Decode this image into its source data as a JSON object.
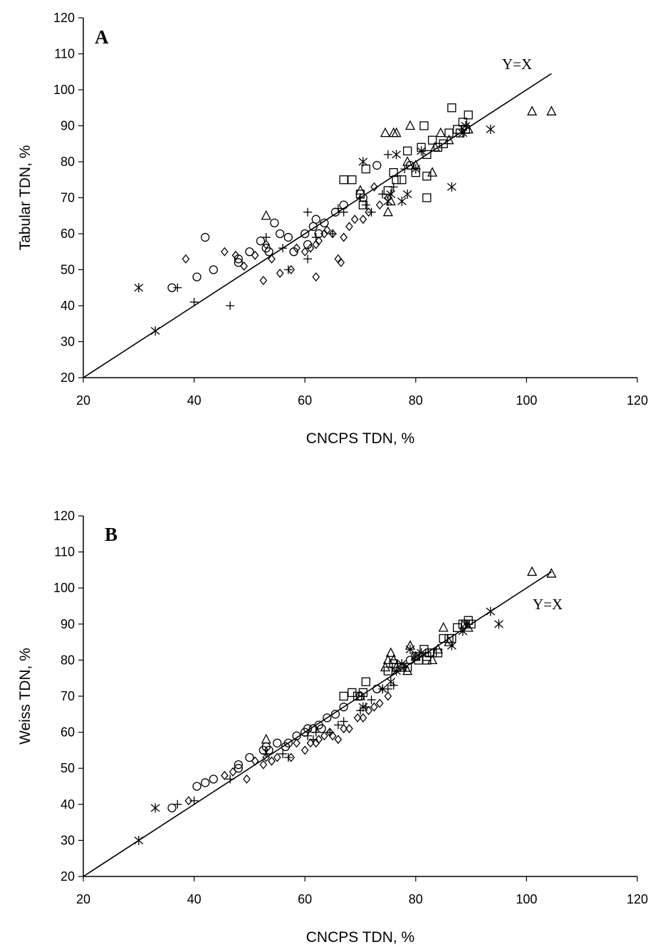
{
  "chart_data": [
    {
      "type": "scatter",
      "panel_label": "A",
      "xlabel": "CNCPS TDN, %",
      "ylabel": "Tabular TDN, %",
      "xlim": [
        20,
        120
      ],
      "ylim": [
        20,
        120
      ],
      "x_ticks": [
        20,
        40,
        60,
        80,
        100,
        120
      ],
      "y_ticks": [
        20,
        30,
        40,
        50,
        60,
        70,
        80,
        90,
        100,
        110,
        120
      ],
      "reference_line": {
        "label": "Y=X",
        "from": [
          20,
          20
        ],
        "to": [
          104.5,
          104.5
        ]
      },
      "grid": false,
      "series": [
        {
          "marker": "circle",
          "points": [
            [
              36,
              45
            ],
            [
              40.5,
              48
            ],
            [
              42,
              59
            ],
            [
              43.5,
              50
            ],
            [
              48,
              52
            ],
            [
              48,
              53
            ],
            [
              50,
              55
            ],
            [
              52,
              58
            ],
            [
              53,
              56
            ],
            [
              53.5,
              55
            ],
            [
              54.5,
              63
            ],
            [
              55.5,
              60
            ],
            [
              57,
              59
            ],
            [
              58,
              55
            ],
            [
              60,
              60
            ],
            [
              60.5,
              57
            ],
            [
              61.5,
              62
            ],
            [
              62.5,
              60
            ],
            [
              62,
              64
            ],
            [
              63.5,
              63
            ],
            [
              65.5,
              66
            ],
            [
              67,
              68
            ],
            [
              70.5,
              70
            ],
            [
              73,
              79
            ],
            [
              79,
              79
            ]
          ]
        },
        {
          "marker": "diamond",
          "points": [
            [
              38.5,
              53
            ],
            [
              45.5,
              55
            ],
            [
              47.5,
              54
            ],
            [
              49,
              51
            ],
            [
              51,
              54
            ],
            [
              52.5,
              47
            ],
            [
              53,
              57
            ],
            [
              54,
              53
            ],
            [
              55.5,
              49
            ],
            [
              57.5,
              50
            ],
            [
              58.5,
              56
            ],
            [
              60,
              55
            ],
            [
              61,
              56
            ],
            [
              62,
              48
            ],
            [
              62,
              57
            ],
            [
              62.5,
              58
            ],
            [
              63.5,
              60
            ],
            [
              64,
              61
            ],
            [
              65,
              60
            ],
            [
              66,
              53
            ],
            [
              66.5,
              52
            ],
            [
              67,
              59
            ],
            [
              68,
              62
            ],
            [
              69,
              64
            ],
            [
              70.5,
              64
            ],
            [
              71.5,
              66
            ],
            [
              72.5,
              73
            ],
            [
              73.5,
              68
            ],
            [
              75,
              70
            ]
          ]
        },
        {
          "marker": "plus",
          "points": [
            [
              37,
              45
            ],
            [
              40,
              41
            ],
            [
              46.5,
              40
            ],
            [
              53,
              59
            ],
            [
              56,
              56
            ],
            [
              57,
              50
            ],
            [
              60.5,
              66
            ],
            [
              60.5,
              53
            ],
            [
              62,
              59
            ],
            [
              65,
              60
            ],
            [
              66,
              67
            ],
            [
              67,
              66
            ],
            [
              70,
              70
            ],
            [
              71,
              68
            ],
            [
              72,
              66
            ],
            [
              74,
              71
            ],
            [
              75,
              82
            ],
            [
              76,
              73
            ],
            [
              78,
              78
            ]
          ]
        },
        {
          "marker": "square",
          "points": [
            [
              67,
              75
            ],
            [
              68.5,
              75
            ],
            [
              70,
              71
            ],
            [
              70.5,
              68
            ],
            [
              71,
              78
            ],
            [
              75,
              72
            ],
            [
              76,
              77
            ],
            [
              76.5,
              75
            ],
            [
              77.5,
              75
            ],
            [
              78.5,
              83
            ],
            [
              80,
              77
            ],
            [
              81,
              84
            ],
            [
              81.5,
              90
            ],
            [
              82,
              70
            ],
            [
              82,
              82
            ],
            [
              82,
              76
            ],
            [
              83,
              86
            ],
            [
              84,
              84
            ],
            [
              85,
              85
            ],
            [
              86,
              88
            ],
            [
              86.5,
              95
            ],
            [
              87.5,
              89
            ],
            [
              88,
              88
            ],
            [
              88.5,
              91
            ],
            [
              89.5,
              93
            ],
            [
              89,
              89
            ]
          ]
        },
        {
          "marker": "triangle",
          "points": [
            [
              53,
              65
            ],
            [
              70,
              72
            ],
            [
              74.5,
              88
            ],
            [
              75,
              66
            ],
            [
              75.5,
              69
            ],
            [
              76,
              88
            ],
            [
              76.5,
              88
            ],
            [
              78.5,
              80
            ],
            [
              79,
              90
            ],
            [
              80,
              79
            ],
            [
              83,
              77
            ],
            [
              83.5,
              84
            ],
            [
              84.5,
              88
            ],
            [
              86,
              86
            ],
            [
              89.5,
              89
            ],
            [
              101,
              94
            ],
            [
              104.5,
              94
            ]
          ]
        },
        {
          "marker": "asterisk",
          "points": [
            [
              30,
              45
            ],
            [
              33,
              33
            ],
            [
              70.5,
              80
            ],
            [
              75,
              69
            ],
            [
              75.5,
              71
            ],
            [
              76.5,
              82
            ],
            [
              77.5,
              69
            ],
            [
              78.5,
              71
            ],
            [
              80,
              78
            ],
            [
              81,
              83
            ],
            [
              86.5,
              73
            ],
            [
              88.5,
              88
            ],
            [
              89,
              90
            ],
            [
              93.5,
              89
            ]
          ]
        }
      ]
    },
    {
      "type": "scatter",
      "panel_label": "B",
      "xlabel": "CNCPS TDN, %",
      "ylabel": "Weiss TDN, %",
      "xlim": [
        20,
        120
      ],
      "ylim": [
        20,
        120
      ],
      "x_ticks": [
        20,
        40,
        60,
        80,
        100,
        120
      ],
      "y_ticks": [
        20,
        30,
        40,
        50,
        60,
        70,
        80,
        90,
        100,
        110,
        120
      ],
      "reference_line": {
        "label": "Y=X",
        "from": [
          20,
          20
        ],
        "to": [
          104.5,
          104.5
        ]
      },
      "grid": false,
      "series": [
        {
          "marker": "circle",
          "points": [
            [
              36,
              39
            ],
            [
              40.5,
              45
            ],
            [
              42,
              46
            ],
            [
              43.5,
              47
            ],
            [
              48,
              50
            ],
            [
              48,
              51
            ],
            [
              50,
              53
            ],
            [
              52.5,
              55
            ],
            [
              53,
              56
            ],
            [
              53.5,
              55
            ],
            [
              55,
              57
            ],
            [
              56.5,
              56
            ],
            [
              57,
              57
            ],
            [
              58.5,
              59
            ],
            [
              60,
              60
            ],
            [
              60.5,
              61
            ],
            [
              61.5,
              61
            ],
            [
              62.5,
              62
            ],
            [
              63,
              61
            ],
            [
              64,
              64
            ],
            [
              65.5,
              65
            ],
            [
              67,
              67
            ],
            [
              70,
              70
            ],
            [
              73,
              72
            ],
            [
              79,
              80
            ]
          ]
        },
        {
          "marker": "diamond",
          "points": [
            [
              39,
              41
            ],
            [
              45.5,
              48
            ],
            [
              47,
              49
            ],
            [
              49.5,
              47
            ],
            [
              51,
              52
            ],
            [
              52.5,
              51
            ],
            [
              53,
              53
            ],
            [
              54,
              52
            ],
            [
              55,
              53
            ],
            [
              57.5,
              53
            ],
            [
              58.5,
              57
            ],
            [
              60,
              55
            ],
            [
              61,
              57
            ],
            [
              62,
              57
            ],
            [
              62.5,
              58
            ],
            [
              63.5,
              59
            ],
            [
              64.5,
              60
            ],
            [
              65,
              59
            ],
            [
              66,
              58
            ],
            [
              67,
              61
            ],
            [
              68,
              61
            ],
            [
              69.5,
              64
            ],
            [
              70.5,
              64
            ],
            [
              71.5,
              66
            ],
            [
              72.5,
              67
            ],
            [
              73.5,
              68
            ],
            [
              75,
              70
            ]
          ]
        },
        {
          "marker": "plus",
          "points": [
            [
              37,
              40
            ],
            [
              40,
              41
            ],
            [
              46.5,
              47
            ],
            [
              53,
              54
            ],
            [
              56,
              54
            ],
            [
              57,
              53
            ],
            [
              60.5,
              59
            ],
            [
              61.5,
              58
            ],
            [
              62,
              60
            ],
            [
              64.5,
              60
            ],
            [
              66,
              62
            ],
            [
              67,
              63
            ],
            [
              70,
              66
            ],
            [
              71,
              67
            ],
            [
              72,
              69
            ],
            [
              74,
              72
            ],
            [
              75,
              72
            ],
            [
              76,
              73
            ],
            [
              78,
              78
            ]
          ]
        },
        {
          "marker": "square",
          "points": [
            [
              67,
              70
            ],
            [
              68.5,
              71
            ],
            [
              69.5,
              70
            ],
            [
              70.5,
              71
            ],
            [
              71,
              74
            ],
            [
              75,
              77
            ],
            [
              76,
              79
            ],
            [
              76.5,
              78
            ],
            [
              77.5,
              78
            ],
            [
              78.5,
              78
            ],
            [
              80,
              81
            ],
            [
              80.5,
              80
            ],
            [
              81.5,
              83
            ],
            [
              82,
              80
            ],
            [
              82,
              81
            ],
            [
              82.5,
              82
            ],
            [
              83,
              82
            ],
            [
              84,
              82
            ],
            [
              85,
              86
            ],
            [
              86,
              86
            ],
            [
              86.5,
              86
            ],
            [
              87.5,
              89
            ],
            [
              88.5,
              90
            ],
            [
              89,
              90
            ],
            [
              89.5,
              91
            ],
            [
              90,
              90
            ]
          ]
        },
        {
          "marker": "triangle",
          "points": [
            [
              53,
              58
            ],
            [
              70,
              70
            ],
            [
              74.5,
              78
            ],
            [
              75,
              80
            ],
            [
              75.5,
              82
            ],
            [
              76,
              80
            ],
            [
              76.5,
              78
            ],
            [
              78.5,
              77
            ],
            [
              79,
              84
            ],
            [
              80,
              81
            ],
            [
              83,
              80
            ],
            [
              84,
              83
            ],
            [
              85,
              89
            ],
            [
              86,
              85
            ],
            [
              89.5,
              89
            ],
            [
              101,
              104.5
            ],
            [
              104.5,
              104
            ]
          ]
        },
        {
          "marker": "asterisk",
          "points": [
            [
              30,
              30
            ],
            [
              33,
              39
            ],
            [
              70.5,
              67
            ],
            [
              74,
              72
            ],
            [
              75.5,
              74
            ],
            [
              76.5,
              77
            ],
            [
              77.5,
              79
            ],
            [
              79,
              83
            ],
            [
              80,
              81
            ],
            [
              81,
              82
            ],
            [
              86.5,
              84
            ],
            [
              88.5,
              88
            ],
            [
              89,
              90
            ],
            [
              93.5,
              93.5
            ],
            [
              95,
              90
            ]
          ]
        }
      ]
    }
  ]
}
